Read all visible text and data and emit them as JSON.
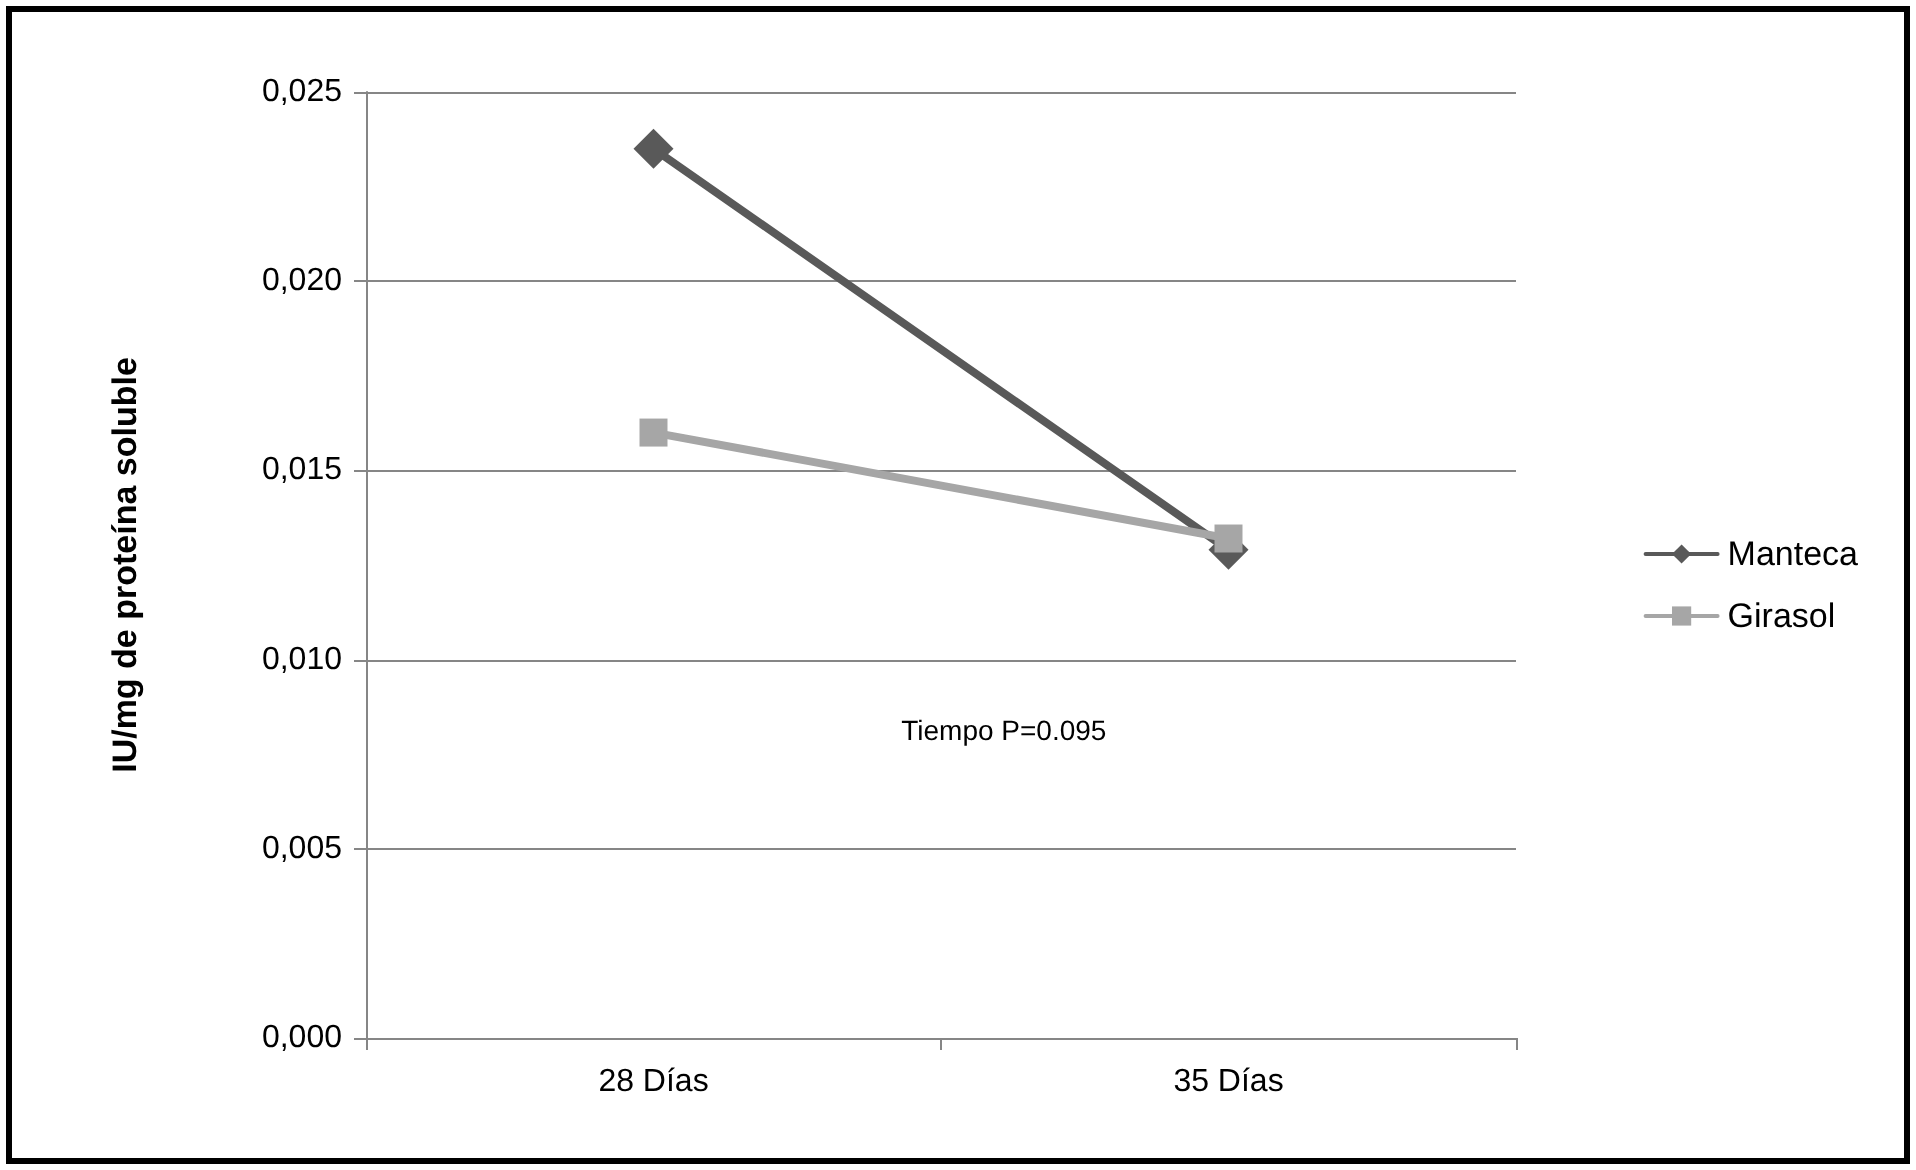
{
  "chart_data": {
    "type": "line",
    "ylabel": "IU/mg de proteína soluble",
    "categories": [
      "28 Días",
      "35 Días"
    ],
    "series": [
      {
        "name": "Manteca",
        "color": "#595959",
        "marker": "diamond",
        "values": [
          0.0235,
          0.0129
        ]
      },
      {
        "name": "Girasol",
        "color": "#a6a6a6",
        "marker": "square",
        "values": [
          0.016,
          0.0132
        ]
      }
    ],
    "ylim": [
      0,
      0.025
    ],
    "yticks": [
      {
        "value": 0,
        "label": "0,000"
      },
      {
        "value": 0.005,
        "label": "0,005"
      },
      {
        "value": 0.01,
        "label": "0,010"
      },
      {
        "value": 0.015,
        "label": "0,015"
      },
      {
        "value": 0.02,
        "label": "0,020"
      },
      {
        "value": 0.025,
        "label": "0,025"
      }
    ],
    "grid": "y",
    "legend": "right",
    "line_style": "solid",
    "annotations": [
      "Tiempo P=0.095"
    ]
  }
}
